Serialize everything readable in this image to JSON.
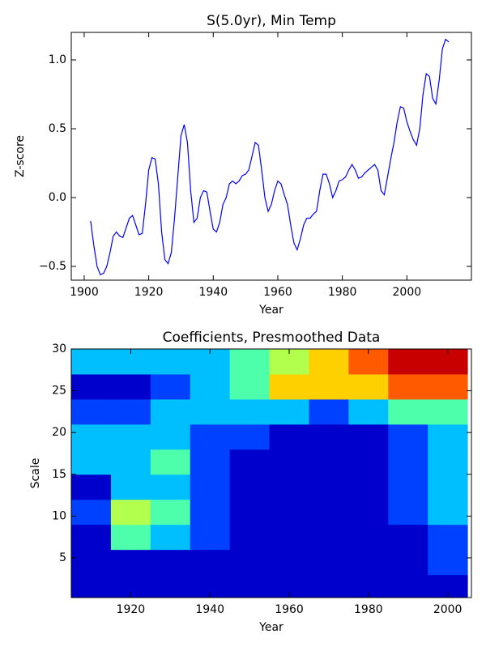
{
  "chart_data": [
    {
      "type": "line",
      "title": "S(5.0yr), Min Temp",
      "x_label": "Year",
      "y_label": "Z-score",
      "x": [
        1902,
        1903,
        1904,
        1905,
        1906,
        1907,
        1908,
        1909,
        1910,
        1911,
        1912,
        1913,
        1914,
        1915,
        1916,
        1917,
        1918,
        1919,
        1920,
        1921,
        1922,
        1923,
        1924,
        1925,
        1926,
        1927,
        1928,
        1929,
        1930,
        1931,
        1932,
        1933,
        1934,
        1935,
        1936,
        1937,
        1938,
        1939,
        1940,
        1941,
        1942,
        1943,
        1944,
        1945,
        1946,
        1947,
        1948,
        1949,
        1950,
        1951,
        1952,
        1953,
        1954,
        1955,
        1956,
        1957,
        1958,
        1959,
        1960,
        1961,
        1962,
        1963,
        1964,
        1965,
        1966,
        1967,
        1968,
        1969,
        1970,
        1971,
        1972,
        1973,
        1974,
        1975,
        1976,
        1977,
        1978,
        1979,
        1980,
        1981,
        1982,
        1983,
        1984,
        1985,
        1986,
        1987,
        1988,
        1989,
        1990,
        1991,
        1992,
        1993,
        1994,
        1995,
        1996,
        1997,
        1998,
        1999,
        2000,
        2001,
        2002,
        2003,
        2004,
        2005,
        2006,
        2007,
        2008,
        2009,
        2010,
        2011,
        2012,
        2013
      ],
      "series": [
        {
          "color": "#0000ff",
          "values": [
            -0.17,
            -0.35,
            -0.5,
            -0.56,
            -0.55,
            -0.5,
            -0.4,
            -0.28,
            -0.25,
            -0.28,
            -0.29,
            -0.22,
            -0.15,
            -0.13,
            -0.2,
            -0.27,
            -0.26,
            -0.05,
            0.2,
            0.29,
            0.28,
            0.1,
            -0.25,
            -0.45,
            -0.48,
            -0.4,
            -0.15,
            0.15,
            0.45,
            0.53,
            0.4,
            0.05,
            -0.18,
            -0.15,
            0.0,
            0.05,
            0.04,
            -0.1,
            -0.23,
            -0.25,
            -0.18,
            -0.05,
            0.0,
            0.1,
            0.12,
            0.1,
            0.12,
            0.16,
            0.17,
            0.2,
            0.3,
            0.4,
            0.38,
            0.2,
            0.0,
            -0.1,
            -0.05,
            0.05,
            0.12,
            0.1,
            0.02,
            -0.05,
            -0.2,
            -0.33,
            -0.38,
            -0.3,
            -0.2,
            -0.15,
            -0.15,
            -0.12,
            -0.1,
            0.05,
            0.17,
            0.17,
            0.1,
            0.0,
            0.05,
            0.12,
            0.13,
            0.15,
            0.2,
            0.24,
            0.2,
            0.14,
            0.15,
            0.18,
            0.2,
            0.22,
            0.24,
            0.2,
            0.05,
            0.02,
            0.15,
            0.28,
            0.4,
            0.55,
            0.66,
            0.65,
            0.55,
            0.48,
            0.42,
            0.38,
            0.5,
            0.75,
            0.9,
            0.88,
            0.72,
            0.68,
            0.85,
            1.08,
            1.15,
            1.13
          ]
        }
      ],
      "xlim": [
        1896,
        2020
      ],
      "xticks": [
        1900,
        1920,
        1940,
        1960,
        1980,
        2000
      ],
      "ylim": [
        -0.6,
        1.2
      ],
      "yticks": [
        {
          "value": -0.5,
          "label": "−0.5"
        },
        {
          "value": 0,
          "label": "0.0"
        },
        {
          "value": 0.5,
          "label": "0.5"
        },
        {
          "value": 1,
          "label": "1.0"
        }
      ]
    },
    {
      "type": "contour",
      "title": "Coefficients, Presmoothed Data",
      "x_label": "Year",
      "y_label": "Scale",
      "x": [
        1910,
        1920,
        1930,
        1940,
        1950,
        1960,
        1970,
        1980,
        1990,
        2000
      ],
      "y": [
        1.5,
        4.5,
        7.5,
        10.5,
        13.5,
        16.5,
        19.5,
        22.5,
        25.5,
        28.5
      ],
      "z": [
        [
          0,
          0,
          0,
          0,
          0,
          0,
          0,
          0,
          0,
          0
        ],
        [
          0,
          0,
          0,
          0,
          0,
          0,
          0,
          0,
          0,
          1
        ],
        [
          0,
          3,
          2,
          1,
          0,
          0,
          0,
          0,
          0,
          1
        ],
        [
          1,
          4,
          3,
          1,
          0,
          0,
          0,
          0,
          1,
          2
        ],
        [
          0,
          2,
          2,
          1,
          0,
          0,
          0,
          0,
          1,
          2
        ],
        [
          2,
          2,
          3,
          1,
          0,
          0,
          0,
          0,
          1,
          2
        ],
        [
          2,
          2,
          2,
          1,
          1,
          0,
          0,
          0,
          1,
          2
        ],
        [
          1,
          1,
          2,
          2,
          2,
          2,
          1,
          2,
          3,
          3
        ],
        [
          0,
          0,
          1,
          2,
          3,
          5,
          5,
          5,
          6,
          6
        ],
        [
          2,
          2,
          2,
          2,
          3,
          4,
          5,
          6,
          7,
          7
        ]
      ],
      "colors": [
        "#0000cc",
        "#0040ff",
        "#00bfff",
        "#4dffab",
        "#b3ff4d",
        "#ffd000",
        "#ff5a00",
        "#c80000"
      ],
      "xlim": [
        1905,
        2006
      ],
      "xticks": [
        1920,
        1940,
        1960,
        1980,
        2000
      ],
      "ylim": [
        0.25,
        30
      ],
      "yticks": [
        5,
        10,
        15,
        20,
        25,
        30
      ]
    }
  ]
}
